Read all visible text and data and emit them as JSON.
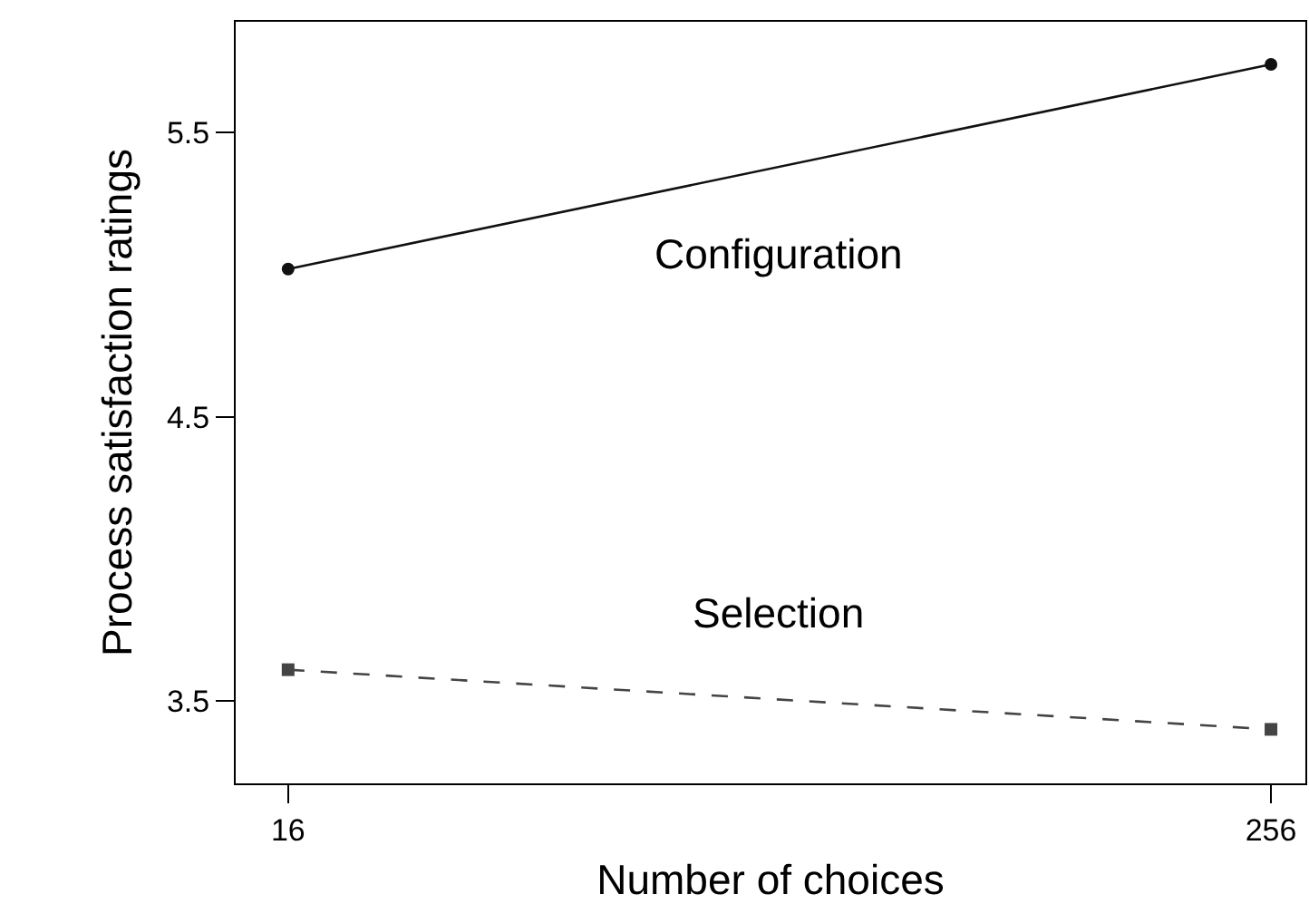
{
  "chart_data": {
    "type": "line",
    "xlabel": "Number of choices",
    "ylabel": "Process satisfaction ratings",
    "x": [
      16,
      256
    ],
    "xlim": [
      3.2,
      264.4
    ],
    "xticks": [
      16,
      256
    ],
    "ylim": [
      3.21,
      5.89
    ],
    "yticks": [
      3.5,
      4.5,
      5.5
    ],
    "grid": false,
    "series": [
      {
        "name": "Configuration",
        "color": "#111111",
        "values": [
          5.02,
          5.74
        ],
        "marker": "circle",
        "line_style": "solid"
      },
      {
        "name": "Selection",
        "color": "#444444",
        "values": [
          3.61,
          3.4
        ],
        "marker": "square",
        "line_style": "dashed"
      }
    ]
  }
}
